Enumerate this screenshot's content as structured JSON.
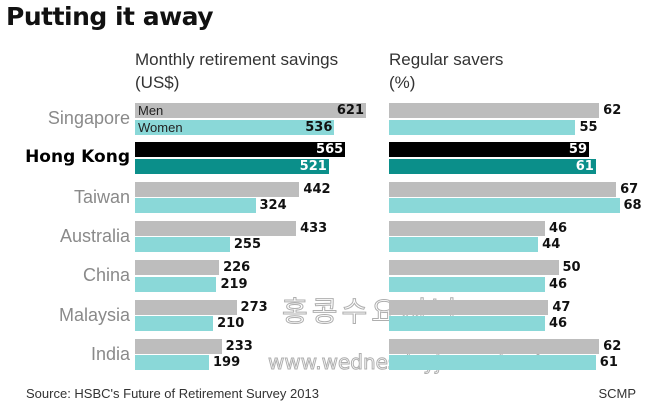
{
  "chart_data": {
    "type": "bar",
    "title": "Putting it away",
    "categories": [
      "Singapore",
      "Hong Kong",
      "Taiwan",
      "Australia",
      "China",
      "Malaysia",
      "India"
    ],
    "highlight": "Hong Kong",
    "panels": [
      {
        "title_line1": "Monthly retirement savings",
        "title_line2": "(US$)",
        "series": [
          {
            "name": "Men",
            "values": [
              621,
              565,
              442,
              433,
              226,
              273,
              233
            ]
          },
          {
            "name": "Women",
            "values": [
              536,
              521,
              324,
              255,
              219,
              210,
              199
            ]
          }
        ]
      },
      {
        "title_line1": "Regular savers",
        "title_line2": "(%)",
        "series": [
          {
            "name": "Men",
            "values": [
              62,
              59,
              67,
              46,
              50,
              47,
              62
            ]
          },
          {
            "name": "Women",
            "values": [
              55,
              61,
              68,
              44,
              46,
              46,
              61
            ]
          }
        ]
      }
    ],
    "legend": [
      "Men",
      "Women"
    ],
    "colors": {
      "men": "#bdbdbd",
      "women": "#8ad8d8",
      "hl_men": "#000000",
      "hl_women": "#0b8f8a"
    }
  },
  "source": "Source: HSBC's Future of Retirement Survey 2013",
  "credit": "SCMP",
  "watermark": {
    "line1": "홍콩수요저널",
    "line2": "www.wednesdayjournal.net"
  }
}
